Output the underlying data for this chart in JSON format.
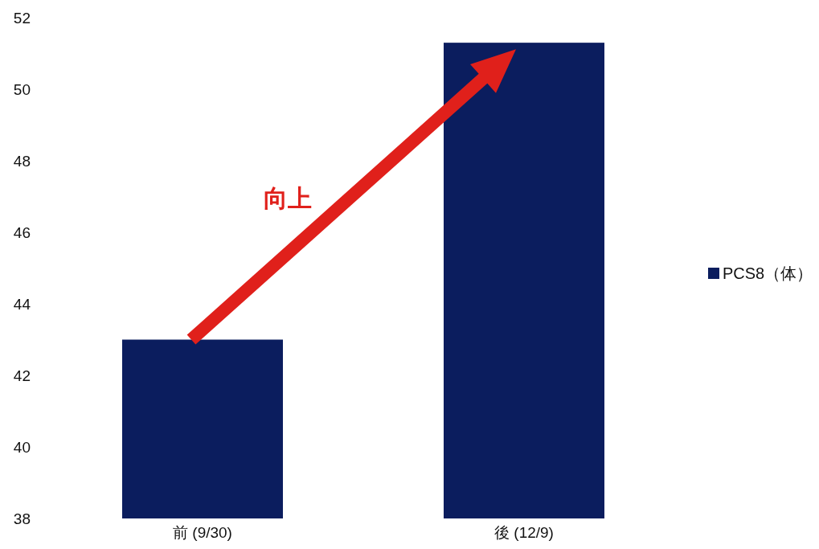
{
  "chart_data": {
    "type": "bar",
    "categories": [
      "前 (9/30)",
      "後 (12/9)"
    ],
    "series": [
      {
        "name": "PCS8（体）",
        "color": "#0b1d5e",
        "values": [
          43.0,
          51.3
        ]
      }
    ],
    "ylim": [
      38,
      52
    ],
    "yticks": [
      38,
      40,
      42,
      44,
      46,
      48,
      50,
      52
    ],
    "grid": false,
    "legend": "right",
    "annotations": [
      "向上"
    ]
  }
}
